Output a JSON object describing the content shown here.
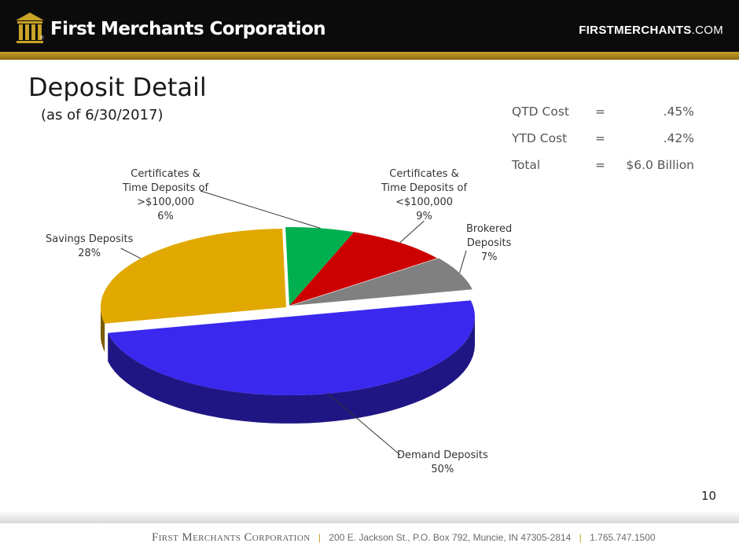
{
  "header": {
    "logo_text": "First Merchants Corporation",
    "logo_mark": "®",
    "site_bold": "FIRSTMERCHANTS",
    "site_dom": ".COM"
  },
  "slide": {
    "title": "Deposit Detail",
    "subtitle": "(as of 6/30/2017)",
    "page_number": "10"
  },
  "stats": [
    {
      "label": "QTD Cost",
      "eq": "=",
      "value": ".45%"
    },
    {
      "label": "YTD Cost",
      "eq": "=",
      "value": ".42%"
    },
    {
      "label": "Total",
      "eq": "=",
      "value": "$6.0 Billion"
    }
  ],
  "chart_data": {
    "type": "pie",
    "title": "",
    "slices": [
      {
        "name": "Demand Deposits",
        "label_lines": [
          "Demand Deposits"
        ],
        "percent_text": "50%",
        "value": 50,
        "color": "#3a28ee"
      },
      {
        "name": "Savings Deposits",
        "label_lines": [
          "Savings Deposits"
        ],
        "percent_text": "28%",
        "value": 28,
        "color": "#e0a800"
      },
      {
        "name": "Certificates & Time Deposits of >$100,000",
        "label_lines": [
          "Certificates &",
          "Time Deposits of",
          ">$100,000"
        ],
        "percent_text": "6%",
        "value": 6,
        "color": "#00b050"
      },
      {
        "name": "Certificates & Time Deposits of <$100,000",
        "label_lines": [
          "Certificates &",
          "Time Deposits of",
          "<$100,000"
        ],
        "percent_text": "9%",
        "value": 9,
        "color": "#cc0000"
      },
      {
        "name": "Brokered Deposits",
        "label_lines": [
          "Brokered",
          "Deposits"
        ],
        "percent_text": "7%",
        "value": 7,
        "color": "#808080"
      }
    ]
  },
  "footer": {
    "company": "First Merchants Corporation",
    "address": "200 E. Jackson St., P.O. Box 792, Muncie, IN 47305-2814",
    "phone": "1.765.747.1500",
    "separator": "|",
    "accent_color": "#c9a227"
  }
}
